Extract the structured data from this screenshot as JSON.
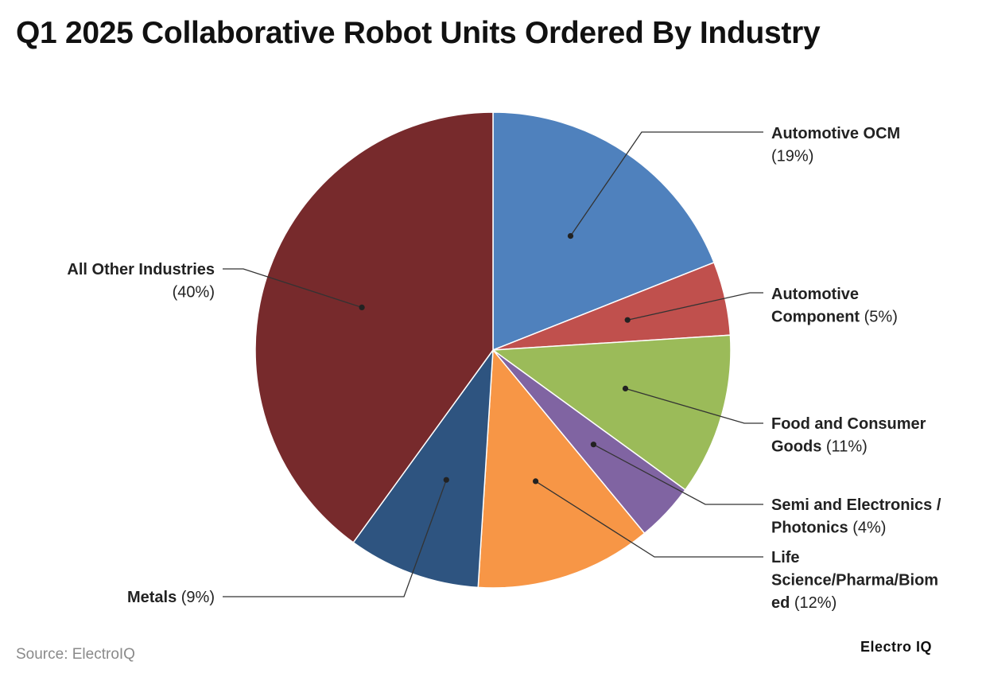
{
  "title": "Q1 2025 Collaborative Robot Units Ordered By Industry",
  "source": "Source: ElectroIQ",
  "logo_text": "Electro IQ",
  "chart_data": {
    "type": "pie",
    "title": "Q1 2025 Collaborative Robot Units Ordered By Industry",
    "slices": [
      {
        "label": "Automotive OCM",
        "value": 19,
        "display": "(19%)",
        "color": "#4f81bd"
      },
      {
        "label": "Automotive Component",
        "value": 5,
        "display": "(5%)",
        "color": "#c0504d"
      },
      {
        "label": "Food and Consumer Goods",
        "value": 11,
        "display": "(11%)",
        "color": "#9bbb59"
      },
      {
        "label": "Semi and Electronics / Photonics",
        "value": 4,
        "display": "(4%)",
        "color": "#8064a2"
      },
      {
        "label": "Life Science/Pharma/Biomed",
        "value": 12,
        "display": "(12%)",
        "color": "#f79646"
      },
      {
        "label": "Metals",
        "value": 9,
        "display": "(9%)",
        "color": "#2e5480"
      },
      {
        "label": "All Other Industries",
        "value": 40,
        "display": "(40%)",
        "color": "#772a2c"
      }
    ],
    "label_text": [
      [
        [
          "Automotive OCM"
        ],
        [
          "(19%)"
        ]
      ],
      [
        [
          "Automotive"
        ],
        [
          "Component",
          "(5%)"
        ]
      ],
      [
        [
          "Food and Consumer"
        ],
        [
          "Goods",
          "(11%)"
        ]
      ],
      [
        [
          "Semi and Electronics /"
        ],
        [
          "Photonics",
          "(4%)"
        ]
      ],
      [
        [
          "Life"
        ],
        [
          "Science/Pharma/Biom"
        ],
        [
          "ed",
          "(12%)"
        ]
      ],
      [
        [
          "Metals",
          "(9%)"
        ]
      ],
      [
        [
          "All Other Industries"
        ],
        [
          "(40%)"
        ]
      ]
    ]
  }
}
